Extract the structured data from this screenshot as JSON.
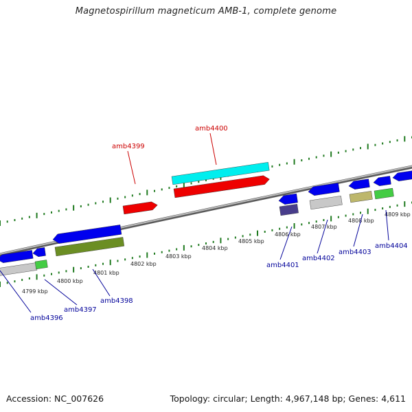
{
  "title": "Magnetospirillum magneticum AMB-1, complete genome",
  "footer": {
    "accession": "Accession: NC_007626",
    "summary": "Topology: circular; Length: 4,967,148 bp; Genes: 4,611"
  },
  "colors": {
    "backbone": "#8c8c8c",
    "tick": "#1f7a1f",
    "forward_label": "#cc0000",
    "reverse_label": "#000099"
  },
  "scale_labels": [
    "4799 kbp",
    "4800 kbp",
    "4801 kbp",
    "4802 kbp",
    "4803 kbp",
    "4804 kbp",
    "4805 kbp",
    "4806 kbp",
    "4807 kbp",
    "4808 kbp",
    "4809 kbp"
  ],
  "genes": [
    {
      "id": "g4396",
      "label": "amb4396",
      "strand": "reverse",
      "row": "cds",
      "color": "#0000ee",
      "icon": "left-arrow"
    },
    {
      "id": "g4397",
      "label": "amb4397",
      "strand": "reverse",
      "row": "cds",
      "color": "#0000ee",
      "icon": "left-arrow"
    },
    {
      "id": "g4398",
      "label": "amb4398",
      "strand": "reverse",
      "row": "cds",
      "color": "#0000ee",
      "icon": "left-arrow"
    },
    {
      "id": "g4399",
      "label": "amb4399",
      "strand": "forward",
      "row": "cds",
      "color": "#ee0000",
      "icon": "right-arrow"
    },
    {
      "id": "g4400",
      "label": "amb4400",
      "strand": "forward",
      "row": "cds",
      "color": "#ee0000",
      "icon": "right-arrow"
    },
    {
      "id": "g4401",
      "label": "amb4401",
      "strand": "reverse",
      "row": "cds",
      "color": "#0000ee",
      "icon": "left-arrow"
    },
    {
      "id": "g4402",
      "label": "amb4402",
      "strand": "reverse",
      "row": "cds",
      "color": "#0000ee",
      "icon": "left-arrow"
    },
    {
      "id": "g4403",
      "label": "amb4403",
      "strand": "reverse",
      "row": "cds",
      "color": "#0000ee",
      "icon": "left-arrow"
    },
    {
      "id": "g4404",
      "label": "amb4404",
      "strand": "reverse",
      "row": "cds",
      "color": "#0000ee",
      "icon": "left-arrow"
    }
  ],
  "category_bars": [
    {
      "id": "c4396",
      "color": "#c8c8c8"
    },
    {
      "id": "c4397",
      "color": "#44cc44"
    },
    {
      "id": "c4398",
      "color": "#6b8e23"
    },
    {
      "id": "c4400",
      "color": "#00eeee"
    },
    {
      "id": "c4401",
      "color": "#483d8b"
    },
    {
      "id": "c4402",
      "color": "#c8c8c8"
    },
    {
      "id": "c4403",
      "color": "#bdb76b"
    },
    {
      "id": "c4404",
      "color": "#44cc44"
    }
  ]
}
